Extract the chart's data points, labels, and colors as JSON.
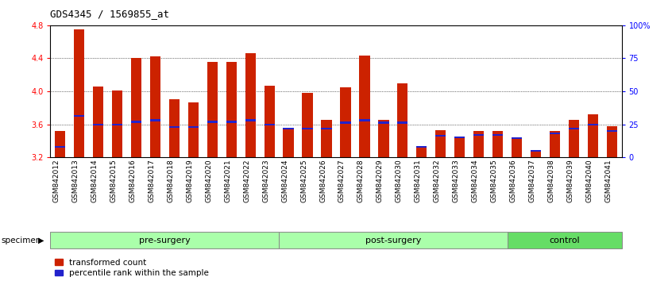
{
  "title": "GDS4345 / 1569855_at",
  "samples": [
    "GSM842012",
    "GSM842013",
    "GSM842014",
    "GSM842015",
    "GSM842016",
    "GSM842017",
    "GSM842018",
    "GSM842019",
    "GSM842020",
    "GSM842021",
    "GSM842022",
    "GSM842023",
    "GSM842024",
    "GSM842025",
    "GSM842026",
    "GSM842027",
    "GSM842028",
    "GSM842029",
    "GSM842030",
    "GSM842031",
    "GSM842032",
    "GSM842033",
    "GSM842034",
    "GSM842035",
    "GSM842036",
    "GSM842037",
    "GSM842038",
    "GSM842039",
    "GSM842040",
    "GSM842041"
  ],
  "red_values": [
    3.52,
    4.75,
    4.06,
    4.01,
    4.4,
    4.42,
    3.9,
    3.87,
    4.36,
    4.36,
    4.46,
    4.07,
    3.55,
    3.98,
    3.65,
    4.05,
    4.43,
    3.65,
    4.1,
    3.33,
    3.53,
    3.44,
    3.52,
    3.52,
    3.43,
    3.28,
    3.52,
    3.65,
    3.72,
    3.58
  ],
  "blue_values": [
    3.33,
    3.7,
    3.6,
    3.6,
    3.63,
    3.65,
    3.57,
    3.57,
    3.63,
    3.63,
    3.65,
    3.6,
    3.55,
    3.55,
    3.55,
    3.62,
    3.65,
    3.62,
    3.62,
    3.33,
    3.46,
    3.44,
    3.47,
    3.47,
    3.43,
    3.28,
    3.49,
    3.55,
    3.6,
    3.52
  ],
  "groups": [
    {
      "label": "pre-surgery",
      "start": 0,
      "end": 12,
      "color": "#AAFFAA"
    },
    {
      "label": "post-surgery",
      "start": 12,
      "end": 24,
      "color": "#AAFFAA"
    },
    {
      "label": "control",
      "start": 24,
      "end": 30,
      "color": "#66DD66"
    }
  ],
  "ymin": 3.2,
  "ymax": 4.8,
  "yticks": [
    3.2,
    3.6,
    4.0,
    4.4,
    4.8
  ],
  "right_yticks": [
    0,
    25,
    50,
    75,
    100
  ],
  "right_ylabels": [
    "0",
    "25",
    "50",
    "75",
    "100%"
  ],
  "bar_color": "#CC2200",
  "blue_color": "#2222CC",
  "title_fontsize": 9,
  "tick_fontsize": 7,
  "group_fontsize": 8,
  "legend_fontsize": 7.5
}
